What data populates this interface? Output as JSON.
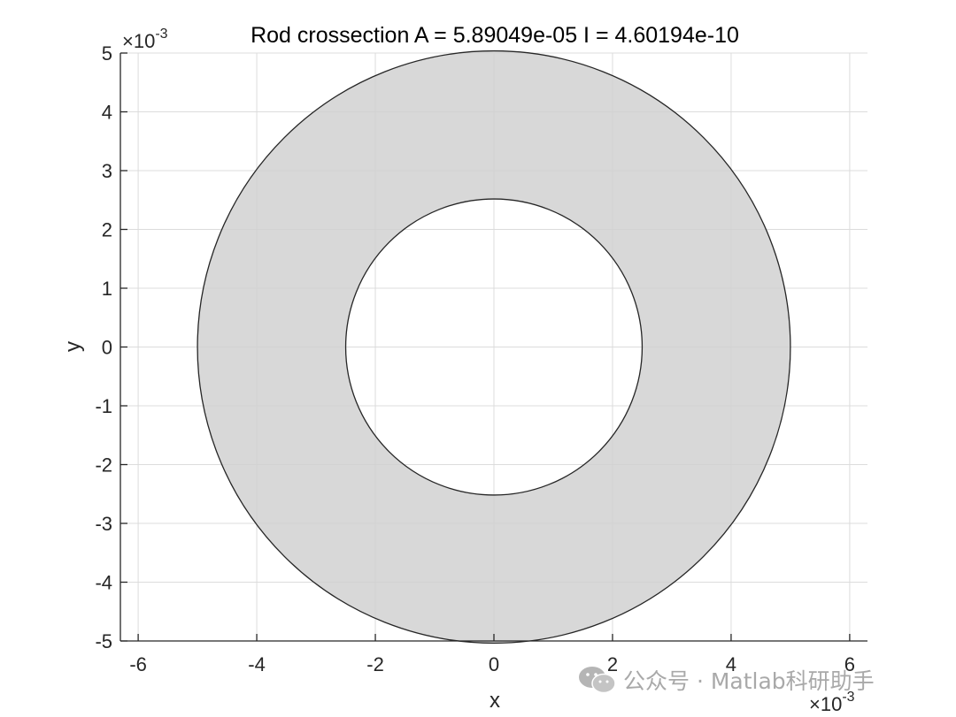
{
  "chart_data": {
    "type": "area",
    "title": "Rod crossection A = 5.89049e-05  I = 4.60194e-10",
    "xlabel": "x",
    "ylabel": "y",
    "xlim": [
      -0.0063,
      0.0063
    ],
    "ylim": [
      -0.005,
      0.005
    ],
    "x_ticks": [
      -0.006,
      -0.004,
      -0.002,
      0,
      0.002,
      0.004,
      0.006
    ],
    "x_tick_labels": [
      "-6",
      "-4",
      "-2",
      "0",
      "2",
      "4",
      "6"
    ],
    "y_ticks": [
      -0.005,
      -0.004,
      -0.003,
      -0.002,
      -0.001,
      0,
      0.001,
      0.002,
      0.003,
      0.004,
      0.005
    ],
    "y_tick_labels": [
      "-5",
      "-4",
      "-3",
      "-2",
      "-1",
      "0",
      "1",
      "2",
      "3",
      "4",
      "5"
    ],
    "exponent_label": "×10",
    "exponent_power": "-3",
    "grid": true,
    "shape": {
      "kind": "annulus",
      "center": [
        0,
        0
      ],
      "outer_radius": 0.005,
      "inner_radius": 0.0025,
      "fill_color": "#d0d0d0",
      "edge_color": "#262626"
    },
    "axis_color": "#262626",
    "grid_color": "#dcdcdc"
  },
  "watermark": {
    "text": "公众号 · Matlab科研助手",
    "icon": "wechat-icon"
  }
}
